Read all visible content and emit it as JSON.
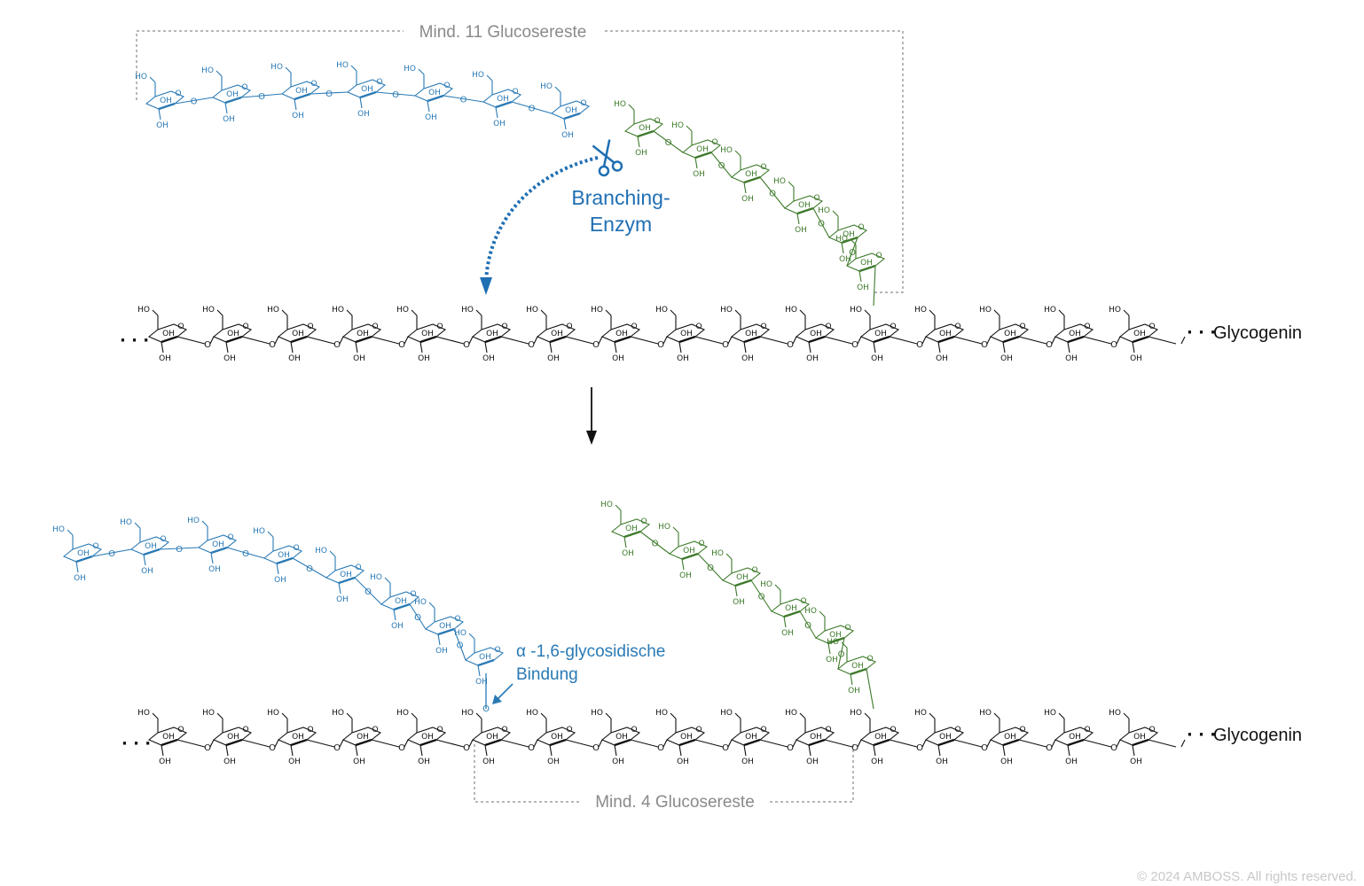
{
  "labels": {
    "top_bracket": "Mind. 11 Glucosereste",
    "enzyme_line1": "Branching-",
    "enzyme_line2": "Enzym",
    "glycogenin_top": "Glycogenin",
    "glycogenin_bottom": "Glycogenin",
    "bond_line1": "α -1,6-glycosidische",
    "bond_line2": "Bindung",
    "bottom_bracket": "Mind. 4 Glucosereste",
    "dots": "· · ·",
    "copyright": "© 2024 AMBOSS. All rights reserved."
  },
  "atoms": {
    "ho": "HO",
    "oh": "OH",
    "o": "O"
  },
  "colors": {
    "blue": "#2a7ab5",
    "green": "#3d7a2a",
    "black": "#111111",
    "gray": "#8a8a8a",
    "arrow_blue": "#1f6fb3"
  },
  "icons": {
    "scissors": "scissors-icon",
    "reaction_arrow": "arrow-down-icon"
  }
}
